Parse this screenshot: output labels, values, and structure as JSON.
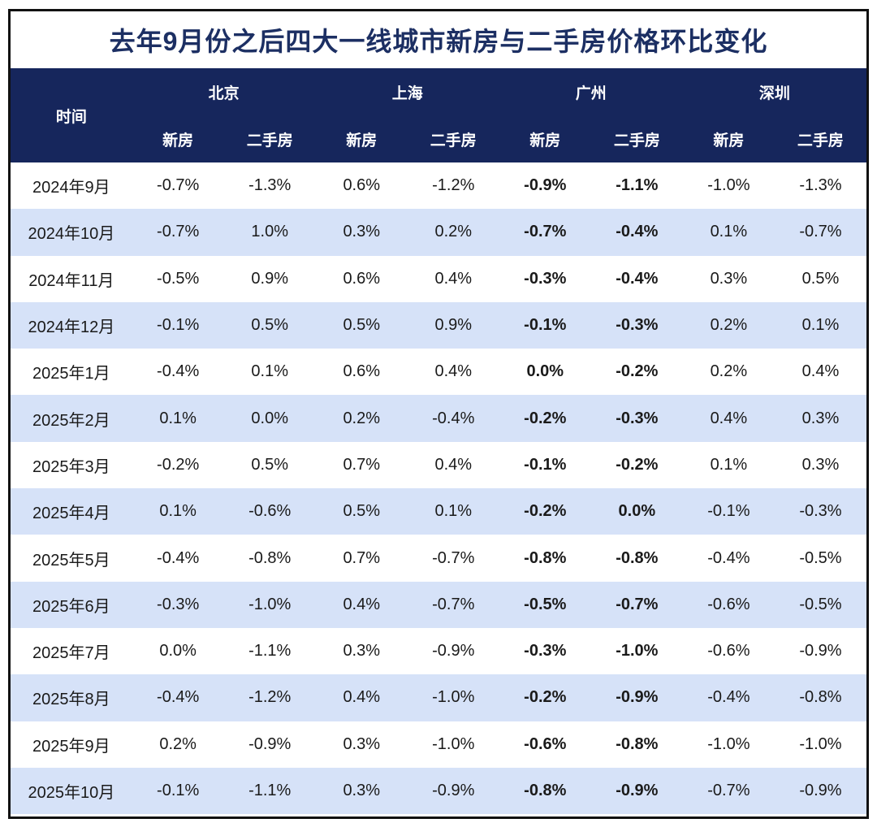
{
  "title": "去年9月份之后四大一线城市新房与二手房价格环比变化",
  "header": {
    "time_label": "时间",
    "cities": [
      "北京",
      "上海",
      "广州",
      "深圳"
    ],
    "sub_columns": [
      "新房",
      "二手房"
    ]
  },
  "colors": {
    "title_text": "#1c2f63",
    "header_background": "#16265c",
    "header_text": "#ffffff",
    "alt_row_background": "#d6e2f8",
    "cell_text": "#1a1a1a",
    "guangzhou_accent_green": "#17a74f",
    "frame_border": "#111111"
  },
  "chart_data": {
    "type": "table",
    "title": "去年9月份之后四大一线城市新房与二手房价格环比变化",
    "column_groups": [
      "北京",
      "上海",
      "广州",
      "深圳"
    ],
    "sub_columns_per_group": [
      "新房",
      "二手房"
    ],
    "row_header_label": "时间",
    "highlighted_group": "广州",
    "rows": [
      {
        "month": "2024年9月",
        "values": [
          "-0.7%",
          "-1.3%",
          "0.6%",
          "-1.2%",
          "-0.9%",
          "-1.1%",
          "-1.0%",
          "-1.3%"
        ]
      },
      {
        "month": "2024年10月",
        "values": [
          "-0.7%",
          "1.0%",
          "0.3%",
          "0.2%",
          "-0.7%",
          "-0.4%",
          "0.1%",
          "-0.7%"
        ]
      },
      {
        "month": "2024年11月",
        "values": [
          "-0.5%",
          "0.9%",
          "0.6%",
          "0.4%",
          "-0.3%",
          "-0.4%",
          "0.3%",
          "0.5%"
        ]
      },
      {
        "month": "2024年12月",
        "values": [
          "-0.1%",
          "0.5%",
          "0.5%",
          "0.9%",
          "-0.1%",
          "-0.3%",
          "0.2%",
          "0.1%"
        ]
      },
      {
        "month": "2025年1月",
        "values": [
          "-0.4%",
          "0.1%",
          "0.6%",
          "0.4%",
          "0.0%",
          "-0.2%",
          "0.2%",
          "0.4%"
        ]
      },
      {
        "month": "2025年2月",
        "values": [
          "0.1%",
          "0.0%",
          "0.2%",
          "-0.4%",
          "-0.2%",
          "-0.3%",
          "0.4%",
          "0.3%"
        ]
      },
      {
        "month": "2025年3月",
        "values": [
          "-0.2%",
          "0.5%",
          "0.7%",
          "0.4%",
          "-0.1%",
          "-0.2%",
          "0.1%",
          "0.3%"
        ]
      },
      {
        "month": "2025年4月",
        "values": [
          "0.1%",
          "-0.6%",
          "0.5%",
          "0.1%",
          "-0.2%",
          "0.0%",
          "-0.1%",
          "-0.3%"
        ]
      },
      {
        "month": "2025年5月",
        "values": [
          "-0.4%",
          "-0.8%",
          "0.7%",
          "-0.7%",
          "-0.8%",
          "-0.8%",
          "-0.4%",
          "-0.5%"
        ]
      },
      {
        "month": "2025年6月",
        "values": [
          "-0.3%",
          "-1.0%",
          "0.4%",
          "-0.7%",
          "-0.5%",
          "-0.7%",
          "-0.6%",
          "-0.5%"
        ]
      },
      {
        "month": "2025年7月",
        "values": [
          "0.0%",
          "-1.1%",
          "0.3%",
          "-0.9%",
          "-0.3%",
          "-1.0%",
          "-0.6%",
          "-0.9%"
        ]
      },
      {
        "month": "2025年8月",
        "values": [
          "-0.4%",
          "-1.2%",
          "0.4%",
          "-1.0%",
          "-0.2%",
          "-0.9%",
          "-0.4%",
          "-0.8%"
        ]
      },
      {
        "month": "2025年9月",
        "values": [
          "0.2%",
          "-0.9%",
          "0.3%",
          "-1.0%",
          "-0.6%",
          "-0.8%",
          "-1.0%",
          "-1.0%"
        ]
      },
      {
        "month": "2025年10月",
        "values": [
          "-0.1%",
          "-1.1%",
          "0.3%",
          "-0.9%",
          "-0.8%",
          "-0.9%",
          "-0.7%",
          "-0.9%"
        ]
      }
    ]
  }
}
